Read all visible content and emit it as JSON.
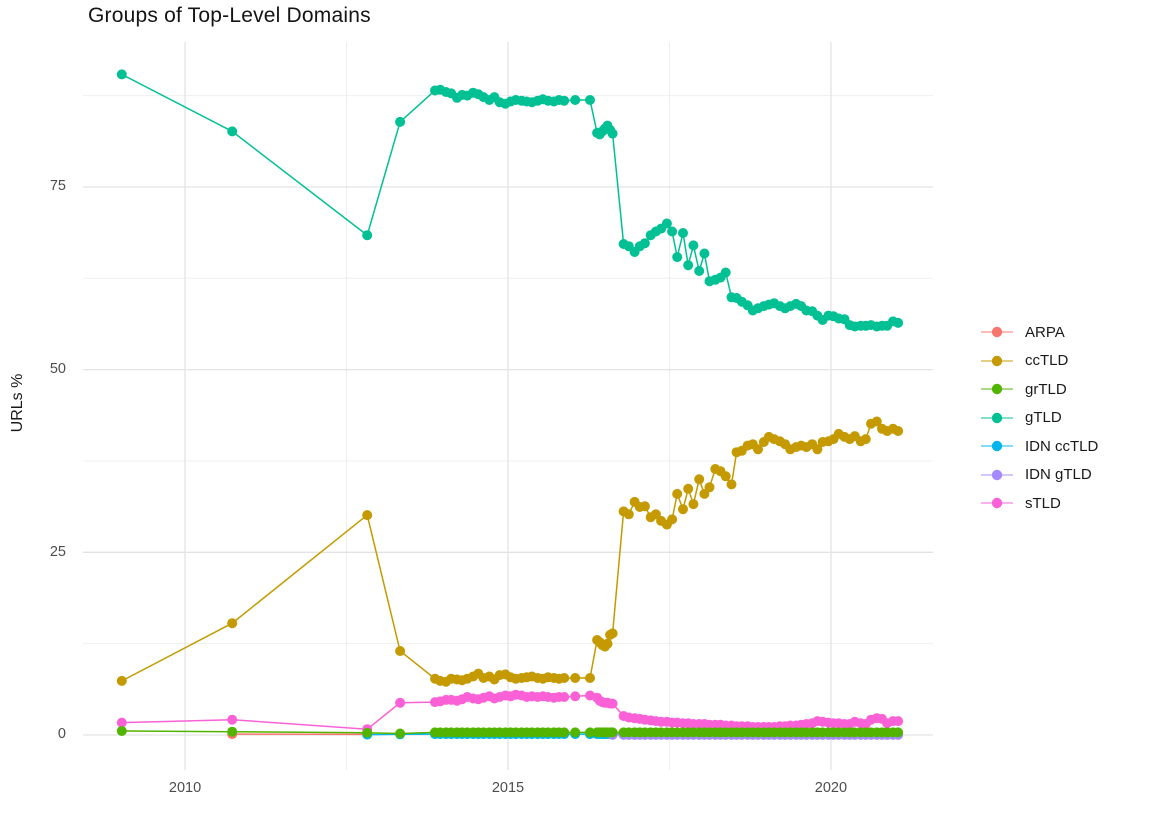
{
  "title": "Groups of Top-Level Domains",
  "axes": {
    "y_label": "URLs %",
    "y_ticks": [
      "0",
      "25",
      "50",
      "75"
    ],
    "x_ticks": [
      "2010",
      "2015",
      "2020"
    ]
  },
  "chart_data": {
    "type": "line",
    "title": "Groups of Top-Level Domains",
    "xlabel": "",
    "ylabel": "URLs %",
    "grid": true,
    "legend_position": "right",
    "xlim": [
      2008.42,
      2021.58
    ],
    "ylim": [
      -4.79,
      94.84
    ],
    "x_major": [
      2010,
      2015,
      2020
    ],
    "x_minor": [
      2012.5,
      2017.5
    ],
    "y_major": [
      0,
      25,
      50,
      75
    ],
    "y_minor": [
      12.5,
      37.5,
      62.5,
      87.5
    ],
    "grid_major_color": "#e3e3e3",
    "grid_minor_color": "#efefef",
    "x_sparse": [
      2009.02,
      2010.73,
      2012.82,
      2013.33
    ],
    "x_grid": [
      2013.87,
      2013.95,
      2014.04,
      2014.12,
      2014.21,
      2014.29,
      2014.37,
      2014.46,
      2014.54,
      2014.62,
      2014.71,
      2014.79,
      2014.87,
      2014.96,
      2015.04,
      2015.12,
      2015.21,
      2015.29,
      2015.37,
      2015.46,
      2015.54,
      2015.62,
      2015.71,
      2015.79,
      2015.87,
      2016.04,
      2016.27,
      2016.38,
      2016.42,
      2016.46,
      2016.5,
      2016.54,
      2016.58,
      2016.62,
      2016.79,
      2016.87,
      2016.96,
      2017.04,
      2017.12,
      2017.21,
      2017.29,
      2017.37,
      2017.46,
      2017.54,
      2017.62,
      2017.71,
      2017.79,
      2017.87,
      2017.96,
      2018.04,
      2018.12,
      2018.21,
      2018.29,
      2018.37,
      2018.46,
      2018.54,
      2018.62,
      2018.71,
      2018.79,
      2018.87,
      2018.96,
      2019.04,
      2019.12,
      2019.21,
      2019.29,
      2019.37,
      2019.46,
      2019.54,
      2019.62,
      2019.71,
      2019.79,
      2019.87,
      2019.96,
      2020.04,
      2020.12,
      2020.21,
      2020.29,
      2020.37,
      2020.46,
      2020.54,
      2020.62,
      2020.71,
      2020.79,
      2020.87,
      2020.96,
      2021.04
    ],
    "series": [
      {
        "name": "ARPA",
        "color": "#F8766D",
        "x": [
          2010.73,
          2012.82
        ],
        "y": [
          0.12,
          0.08
        ]
      },
      {
        "name": "ccTLD",
        "color": "#C49A00",
        "x_use": "sparse+grid",
        "y": [
          7.4,
          15.3,
          30.1,
          11.5,
          7.7,
          7.4,
          7.3,
          7.7,
          7.6,
          7.5,
          7.7,
          8.0,
          8.4,
          7.8,
          8.0,
          7.6,
          8.2,
          8.3,
          7.9,
          7.7,
          7.8,
          7.9,
          8.0,
          7.8,
          7.7,
          7.9,
          7.8,
          7.7,
          7.8,
          7.8,
          7.8,
          13.0,
          12.7,
          12.3,
          12.1,
          12.5,
          13.7,
          13.9,
          30.6,
          30.2,
          31.9,
          31.2,
          31.3,
          29.8,
          30.2,
          29.3,
          28.8,
          29.5,
          33.0,
          30.9,
          33.7,
          31.6,
          35.0,
          33.0,
          33.9,
          36.4,
          36.1,
          35.4,
          34.3,
          38.7,
          38.9,
          39.6,
          39.8,
          39.1,
          40.1,
          40.8,
          40.5,
          40.2,
          39.8,
          39.1,
          39.4,
          39.6,
          39.4,
          39.8,
          39.1,
          40.1,
          40.2,
          40.5,
          41.2,
          40.8,
          40.5,
          40.9,
          40.2,
          40.5,
          42.6,
          42.9,
          41.9,
          41.6,
          41.9,
          41.6
        ]
      },
      {
        "name": "grTLD",
        "color": "#53B400",
        "x_use": "sparse+grid",
        "y_head": [
          0.55,
          0.45,
          0.3,
          0.2
        ],
        "y_fill": 0.35
      },
      {
        "name": "gTLD",
        "color": "#00C094",
        "x_use": "sparse+grid",
        "y": [
          90.4,
          82.6,
          68.4,
          83.9,
          88.2,
          88.3,
          88.0,
          87.8,
          87.2,
          87.6,
          87.5,
          87.9,
          87.7,
          87.3,
          86.9,
          87.3,
          86.6,
          86.4,
          86.7,
          86.9,
          86.8,
          86.7,
          86.6,
          86.8,
          87.0,
          86.8,
          86.7,
          86.9,
          86.8,
          86.9,
          86.9,
          82.4,
          82.2,
          82.6,
          83.0,
          83.4,
          82.8,
          82.3,
          67.2,
          66.9,
          66.1,
          66.9,
          67.3,
          68.4,
          68.9,
          69.3,
          70.0,
          68.9,
          65.4,
          68.7,
          64.3,
          67.0,
          63.5,
          65.9,
          62.1,
          62.3,
          62.6,
          63.3,
          59.9,
          59.8,
          59.3,
          58.8,
          58.1,
          58.4,
          58.7,
          58.9,
          59.1,
          58.7,
          58.4,
          58.7,
          59.0,
          58.7,
          58.1,
          58.0,
          57.4,
          56.8,
          57.4,
          57.3,
          57.0,
          56.9,
          56.1,
          55.9,
          56.0,
          56.0,
          56.1,
          55.9,
          56.0,
          56.0,
          56.6,
          56.4
        ]
      },
      {
        "name": "IDN ccTLD",
        "color": "#00B6EB",
        "x_use": "pre+grid",
        "x_pre": [
          2012.82,
          2013.33
        ],
        "y_head": [
          0.05,
          0.1
        ],
        "y_fill": 0.12
      },
      {
        "name": "IDN gTLD",
        "color": "#A58AFF",
        "x_use": "grid_from",
        "x_from": 2016.62,
        "y_fill": 0.02
      },
      {
        "name": "sTLD",
        "color": "#FB61D7",
        "x_use": "sparse+grid",
        "y": [
          1.7,
          2.1,
          0.8,
          4.4,
          4.5,
          4.6,
          4.8,
          4.8,
          4.7,
          4.9,
          5.2,
          5.0,
          4.9,
          5.1,
          5.3,
          5.0,
          5.2,
          5.4,
          5.3,
          5.5,
          5.4,
          5.2,
          5.3,
          5.2,
          5.3,
          5.2,
          5.1,
          5.2,
          5.2,
          5.3,
          5.4,
          5.1,
          4.7,
          4.5,
          4.4,
          4.4,
          4.3,
          4.3,
          2.6,
          2.4,
          2.3,
          2.2,
          2.1,
          2.0,
          1.9,
          1.8,
          1.8,
          1.7,
          1.7,
          1.6,
          1.6,
          1.5,
          1.5,
          1.5,
          1.4,
          1.4,
          1.4,
          1.3,
          1.3,
          1.2,
          1.2,
          1.2,
          1.1,
          1.1,
          1.1,
          1.1,
          1.1,
          1.2,
          1.2,
          1.3,
          1.3,
          1.4,
          1.5,
          1.6,
          1.9,
          1.8,
          1.7,
          1.6,
          1.6,
          1.5,
          1.5,
          1.8,
          1.6,
          1.5,
          2.1,
          2.3,
          2.2,
          1.6,
          1.9,
          1.9
        ]
      }
    ]
  }
}
